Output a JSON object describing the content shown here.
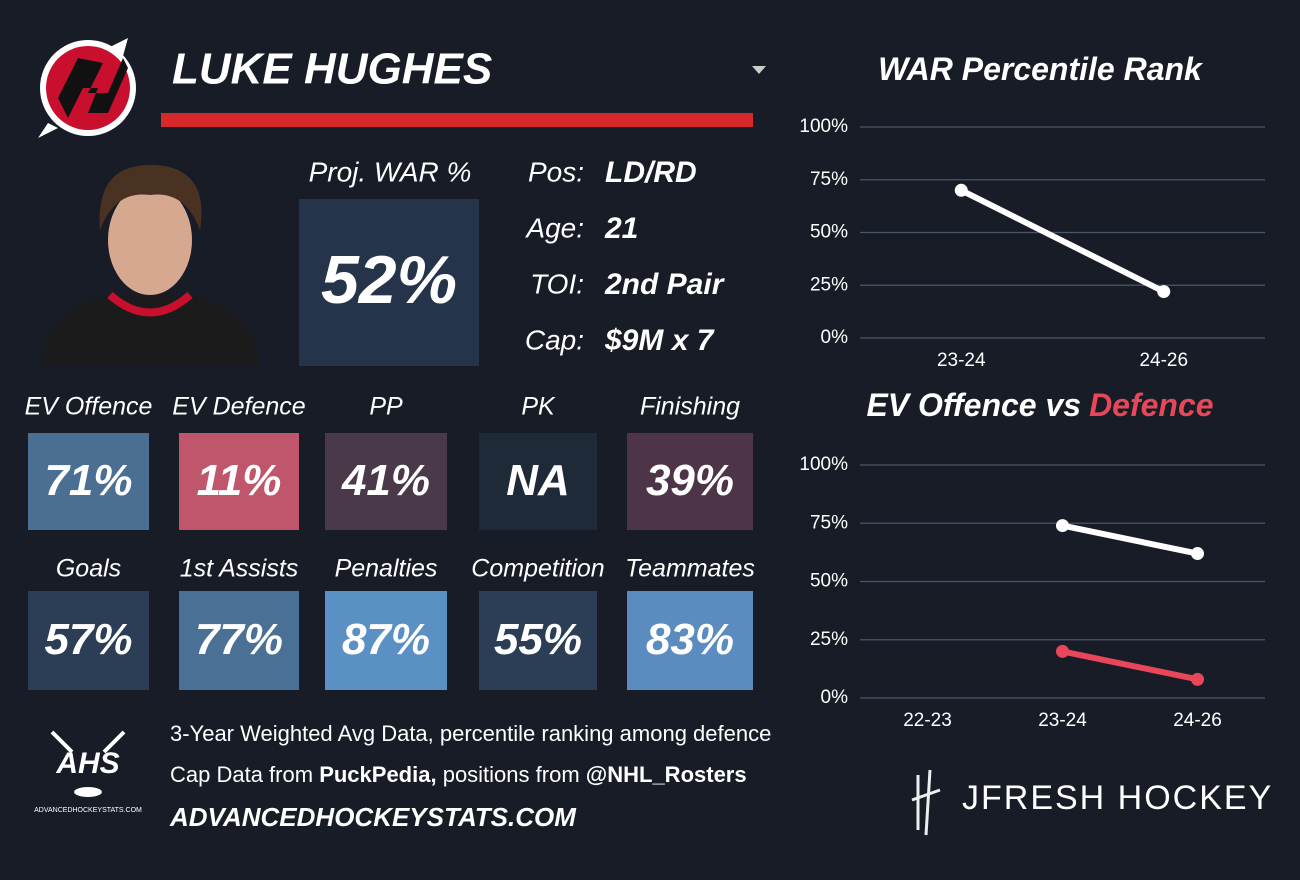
{
  "player": {
    "name": "LUKE HUGHES",
    "proj_label": "Proj. WAR %",
    "proj_value": "52%",
    "info": [
      {
        "label": "Pos:",
        "value": "LD/RD"
      },
      {
        "label": "Age:",
        "value": "21"
      },
      {
        "label": "TOI:",
        "value": "2nd Pair"
      },
      {
        "label": "Cap:",
        "value": "$9M x 7"
      }
    ],
    "tiles": [
      {
        "label": "EV Offence",
        "value": "71%",
        "color": "#4a6f93"
      },
      {
        "label": "EV Defence",
        "value": "11%",
        "color": "#c0566b"
      },
      {
        "label": "PP",
        "value": "41%",
        "color": "#4a3948"
      },
      {
        "label": "PK",
        "value": "NA",
        "color": "#1f2a38"
      },
      {
        "label": "Finishing",
        "value": "39%",
        "color": "#4d3446"
      },
      {
        "label": "Goals",
        "value": "57%",
        "color": "#2b3e56"
      },
      {
        "label": "1st Assists",
        "value": "77%",
        "color": "#4a7096"
      },
      {
        "label": "Penalties",
        "value": "87%",
        "color": "#5b90c5"
      },
      {
        "label": "Competition",
        "value": "55%",
        "color": "#2b3e56"
      },
      {
        "label": "Teammates",
        "value": "83%",
        "color": "#5a8cc0"
      }
    ]
  },
  "footer": {
    "line1": "3-Year Weighted Avg Data, percentile ranking among defence",
    "line2": [
      "Cap Data from",
      "PuckPedia,",
      "positions from",
      "@NHL_Rosters"
    ],
    "site": "ADVANCEDHOCKEYSTATS.COM",
    "ahs_logo": "AHS",
    "ahs_small": "ADVANCEDHOCKEYSTATS.COM",
    "brand": "JFRESH HOCKEY"
  },
  "chart_data": [
    {
      "type": "line",
      "title": [
        {
          "text": "WAR Percentile Rank",
          "color": "#ffffff"
        }
      ],
      "categories": [
        "23-24",
        "24-26"
      ],
      "series": [
        {
          "color": "#ffffff",
          "values": [
            70,
            22
          ]
        }
      ],
      "ylim": [
        0,
        100
      ],
      "yticks": [
        {
          "value": 0,
          "label": "0%"
        },
        {
          "value": 25,
          "label": "25%"
        },
        {
          "value": 50,
          "label": "50%"
        },
        {
          "value": 75,
          "label": "75%"
        },
        {
          "value": 100,
          "label": "100%"
        }
      ],
      "grid": true
    },
    {
      "type": "line",
      "title": [
        {
          "text": "EV Offence vs",
          "color": "#ffffff"
        },
        {
          "text": "Defence",
          "color": "#e8475a"
        }
      ],
      "categories": [
        "22-23",
        "23-24",
        "24-26"
      ],
      "series": [
        {
          "color": "#ffffff",
          "values": [
            null,
            74,
            62
          ]
        },
        {
          "color": "#e8475a",
          "values": [
            null,
            20,
            8
          ]
        }
      ],
      "ylim": [
        0,
        100
      ],
      "yticks": [
        {
          "value": 0,
          "label": "0%"
        },
        {
          "value": 25,
          "label": "25%"
        },
        {
          "value": 50,
          "label": "50%"
        },
        {
          "value": 75,
          "label": "75%"
        },
        {
          "value": 100,
          "label": "100%"
        }
      ],
      "grid": true
    }
  ]
}
